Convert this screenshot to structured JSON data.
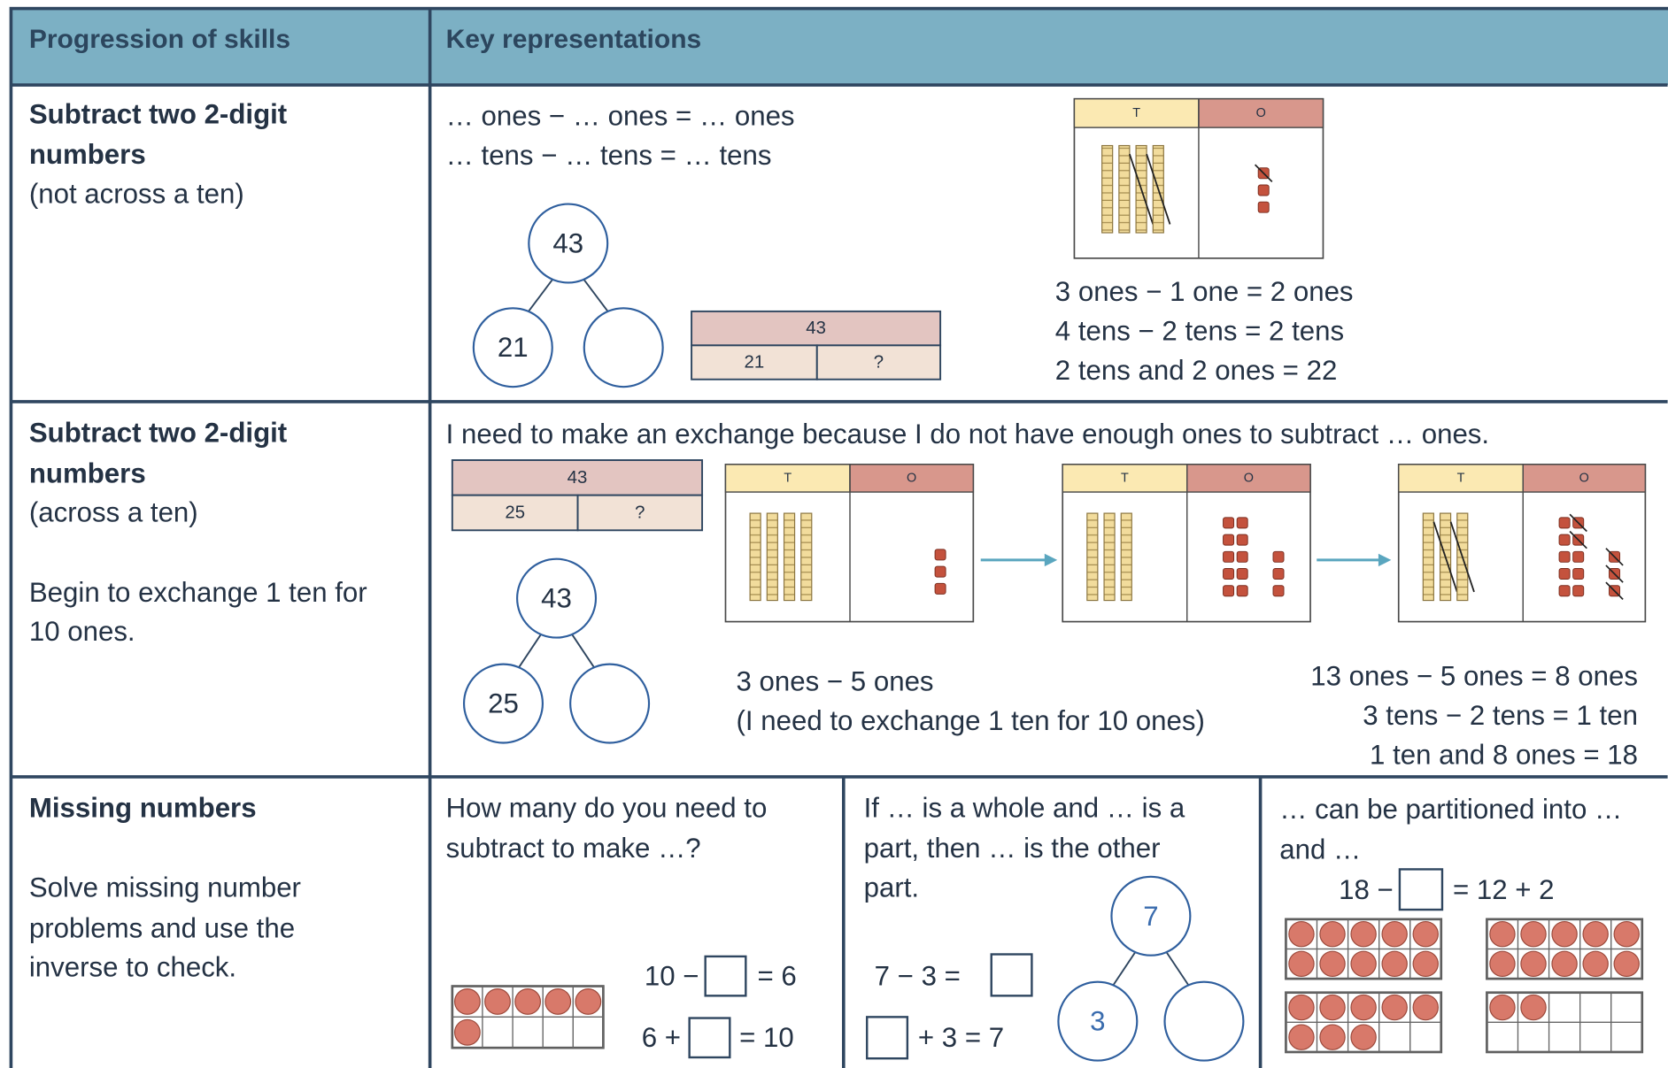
{
  "header": [
    "Progression of skills",
    "Key representations"
  ],
  "row1": {
    "skill": [
      "Subtract two 2-digit",
      "numbers",
      "(not across a ten)"
    ],
    "sentences": [
      "… ones − … ones = … ones",
      "… tens − … tens = … tens"
    ],
    "part_whole": {
      "whole": "43",
      "part": "21"
    },
    "bar_model": {
      "whole": "43",
      "parts": [
        "21",
        "?"
      ]
    },
    "place_value": {
      "headers": [
        "T",
        "O"
      ]
    },
    "working": [
      "3 ones − 1 one = 2 ones",
      "4 tens − 2 tens = 2 tens",
      "2 tens and 2 ones = 22"
    ]
  },
  "row2": {
    "skill": [
      "Subtract two 2-digit",
      "numbers",
      "(across a ten)",
      "Begin to exchange 1 ten for",
      "10 ones."
    ],
    "sentence": "I need to make an exchange because I do not have enough ones to subtract … ones.",
    "bar_model": {
      "whole": "43",
      "parts": [
        "25",
        "?"
      ]
    },
    "part_whole": {
      "whole": "43",
      "part": "25"
    },
    "place_value": {
      "headers": [
        "T",
        "O"
      ]
    },
    "working_left": [
      "3 ones − 5 ones",
      "(I need to exchange 1 ten for 10  ones)"
    ],
    "working_right": [
      "13 ones − 5 ones  = 8 ones",
      "3 tens − 2 tens = 1 ten",
      "1 ten and 8 ones = 18"
    ]
  },
  "row3": {
    "skill": {
      "title": "Missing numbers",
      "note": [
        "Solve missing number",
        "problems and use the",
        "inverse to check."
      ]
    },
    "col_a": {
      "prompt": [
        "How many do you need to",
        "subtract to make …?"
      ],
      "equations": [
        {
          "left": "10 −",
          "right": "= 6"
        },
        {
          "left": "6 +",
          "right": "= 10"
        }
      ]
    },
    "col_b": {
      "prompt": [
        "If … is a whole and … is a",
        "part, then … is the other",
        "part."
      ],
      "equations": [
        "7 − 3 =",
        "+ 3  = 7"
      ],
      "part_whole": {
        "whole": "7",
        "part": "3"
      }
    },
    "col_c": {
      "prompt": [
        "… can be partitioned into …",
        "and …"
      ],
      "equation": {
        "left": "18 −",
        "right": "= 12 + 2"
      }
    }
  }
}
